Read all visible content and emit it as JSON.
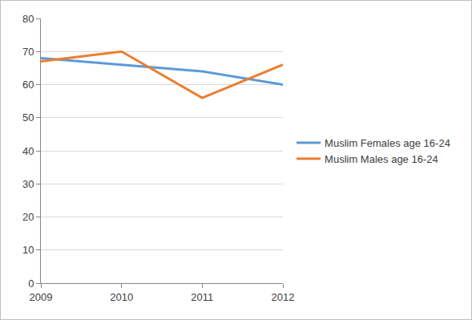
{
  "chart_data": {
    "type": "line",
    "categories": [
      "2009",
      "2010",
      "2011",
      "2012"
    ],
    "series": [
      {
        "name": "Muslim Females age 16-24",
        "color": "#5b9bd5",
        "values": [
          68,
          66,
          64,
          60
        ]
      },
      {
        "name": "Muslim Males age 16-24",
        "color": "#ed7d31",
        "values": [
          67,
          70,
          56,
          66
        ]
      }
    ],
    "ylim": [
      0,
      80
    ],
    "yticks": [
      0,
      10,
      20,
      30,
      40,
      50,
      60,
      70,
      80
    ],
    "grid": true,
    "legend": "right"
  }
}
